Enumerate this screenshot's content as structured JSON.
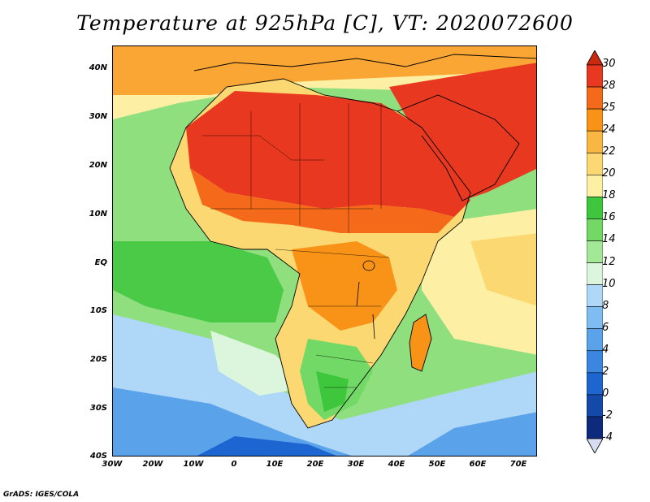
{
  "title": "Temperature at 925hPa [C], VT: 2020072600",
  "footer": "GrADS: IGES/COLA",
  "latitude_labels": [
    "40N",
    "30N",
    "20N",
    "10N",
    "EQ",
    "10S",
    "20S",
    "30S",
    "40S"
  ],
  "longitude_labels": [
    "30W",
    "20W",
    "10W",
    "0",
    "10E",
    "20E",
    "30E",
    "40E",
    "50E",
    "60E",
    "70E"
  ],
  "colorbar": {
    "levels": [
      "30",
      "28",
      "25",
      "24",
      "22",
      "20",
      "18",
      "16",
      "14",
      "12",
      "10",
      "8",
      "6",
      "4",
      "2",
      "0",
      "-2",
      "-4"
    ],
    "colors": [
      "#e8381f",
      "#f46a1a",
      "#f99318",
      "#fab642",
      "#fbd871",
      "#fdf0a4",
      "#3ec73c",
      "#72d966",
      "#a3e896",
      "#dbf6dc",
      "#aed7f8",
      "#7fbcf1",
      "#5aa2ea",
      "#3b86e0",
      "#1d66d1",
      "#1449a9",
      "#0e2a7d",
      "#d8dcf2"
    ],
    "top_color": "#cc2a0f",
    "bottom_color": "#d8dcf2"
  },
  "chart_data": {
    "type": "heatmap",
    "title": "Temperature at 925hPa [C], VT: 2020072600",
    "variable": "Temperature at 925hPa",
    "units": "C",
    "valid_time": "2020072600",
    "lon_range": [
      -30,
      75
    ],
    "lat_range": [
      -40,
      45
    ],
    "levels": [
      -4,
      -2,
      0,
      2,
      4,
      6,
      8,
      10,
      12,
      14,
      16,
      18,
      20,
      22,
      24,
      25,
      28,
      30
    ]
  }
}
